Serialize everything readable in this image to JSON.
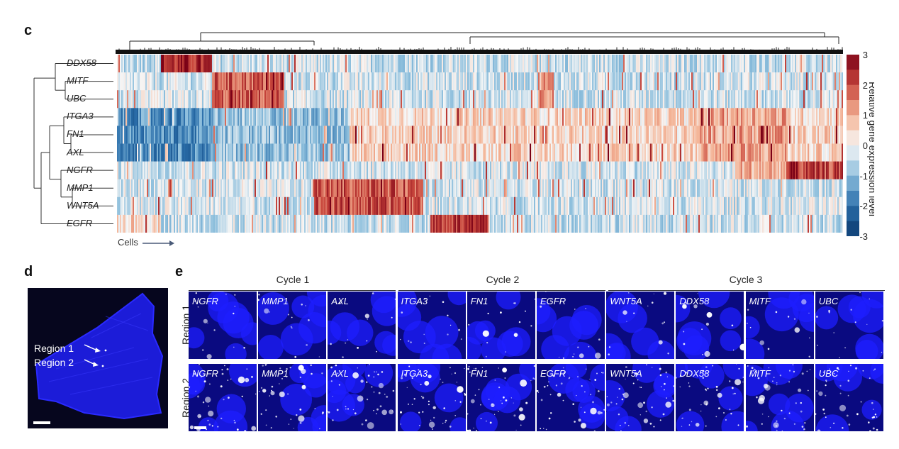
{
  "panels": {
    "c": "c",
    "d": "d",
    "e": "e"
  },
  "heatmap": {
    "genes": [
      "DDX58",
      "MITF",
      "UBC",
      "ITGA3",
      "FN1",
      "AXL",
      "NGFR",
      "MMP1",
      "WNT5A",
      "EGFR"
    ],
    "x_label": "Cells",
    "colorbar_title": "Relative gene expression level",
    "colorbar_ticks": [
      "3",
      "2",
      "1",
      "0",
      "-1",
      "-2",
      "-3"
    ]
  },
  "chart_data": {
    "type": "heatmap",
    "title": "",
    "xlabel": "Cells",
    "ylabel": "",
    "rows": [
      "DDX58",
      "MITF",
      "UBC",
      "ITGA3",
      "FN1",
      "AXL",
      "NGFR",
      "MMP1",
      "WNT5A",
      "EGFR"
    ],
    "color_scale": {
      "min": -3,
      "max": 3,
      "label": "Relative gene expression level",
      "low_color": "#0b3a6f",
      "mid_color": "#f7f7f7",
      "high_color": "#7a0016"
    }
  },
  "tissue": {
    "labels": [
      "Region 1",
      "Region 2"
    ]
  },
  "microscopy": {
    "cycles": [
      "Cycle 1",
      "Cycle 2",
      "Cycle 3"
    ],
    "row_labels": [
      "Region 1",
      "Region 2"
    ],
    "markers": [
      "NGFR",
      "MMP1",
      "AXL",
      "ITGA3",
      "FN1",
      "EGFR",
      "WNT5A",
      "DDX58",
      "MITF",
      "UBC"
    ]
  }
}
